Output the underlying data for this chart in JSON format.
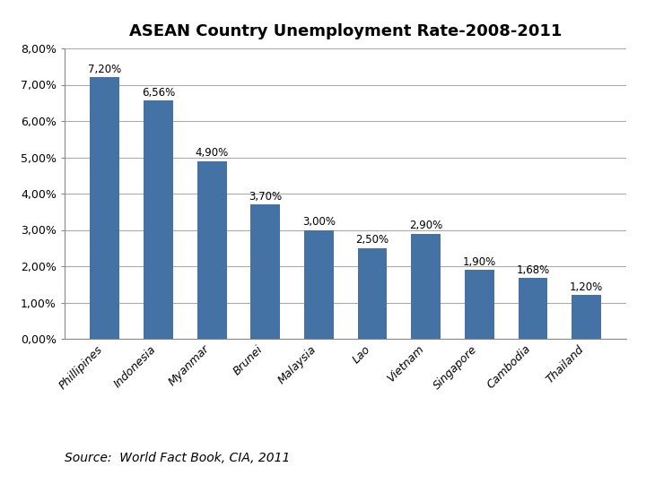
{
  "title": "ASEAN Country Unemployment Rate-2008-2011",
  "categories": [
    "Phillipines",
    "Indonesia",
    "Myanmar",
    "Brunei",
    "Malaysia",
    "Lao",
    "Vietnam",
    "Singapore",
    "Cambodia",
    "Thailand"
  ],
  "values": [
    7.2,
    6.56,
    4.9,
    3.7,
    3.0,
    2.5,
    2.9,
    1.9,
    1.68,
    1.2
  ],
  "labels": [
    "7,20%",
    "6,56%",
    "4,90%",
    "3,70%",
    "3,00%",
    "2,50%",
    "2,90%",
    "1,90%",
    "1,68%",
    "1,20%"
  ],
  "bar_color": "#4472a4",
  "ylim": [
    0,
    8.0
  ],
  "yticks": [
    0.0,
    1.0,
    2.0,
    3.0,
    4.0,
    5.0,
    6.0,
    7.0,
    8.0
  ],
  "ytick_labels": [
    "0,00%",
    "1,00%",
    "2,00%",
    "3,00%",
    "4,00%",
    "5,00%",
    "6,00%",
    "7,00%",
    "8,00%"
  ],
  "source_text": "Source:  World Fact Book, CIA, 2011",
  "title_fontsize": 13,
  "label_fontsize": 8.5,
  "tick_fontsize": 9,
  "source_fontsize": 10,
  "background_color": "#ffffff",
  "grid_color": "#aaaaaa"
}
